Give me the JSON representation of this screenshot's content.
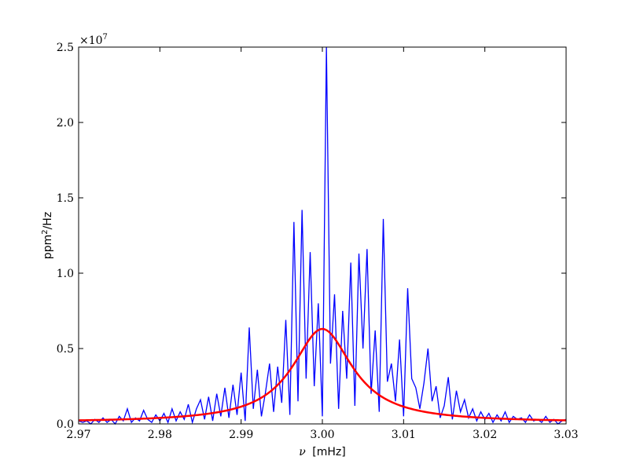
{
  "chart_data": {
    "type": "line",
    "xlabel_symbol": "ν",
    "xlabel_unit": "[mHz]",
    "ylabel_base": "ppm",
    "ylabel_exp": "2",
    "ylabel_unit": "/Hz",
    "offset_base": "×10",
    "offset_exp": "7",
    "xlim": [
      2.97,
      3.03
    ],
    "ylim": [
      0,
      2.5
    ],
    "x_ticks": [
      "2.97",
      "2.98",
      "2.99",
      "3.00",
      "3.01",
      "3.02",
      "3.03"
    ],
    "y_ticks": [
      "0.0",
      "0.5",
      "1.0",
      "1.5",
      "2.0",
      "2.5"
    ],
    "y_scale_note": "values in units of 1e7 ppm^2/Hz",
    "grid": false,
    "series": [
      {
        "color": "#0000ff",
        "style": "noisy-line",
        "x": [
          2.97,
          2.9705,
          2.971,
          2.9715,
          2.972,
          2.9725,
          2.973,
          2.9735,
          2.974,
          2.9745,
          2.975,
          2.9755,
          2.976,
          2.9765,
          2.977,
          2.9775,
          2.978,
          2.9785,
          2.979,
          2.9795,
          2.98,
          2.9805,
          2.981,
          2.9815,
          2.982,
          2.9825,
          2.983,
          2.9835,
          2.984,
          2.9845,
          2.985,
          2.9855,
          2.986,
          2.9865,
          2.987,
          2.9875,
          2.988,
          2.9885,
          2.989,
          2.9895,
          2.99,
          2.9905,
          2.991,
          2.9915,
          2.992,
          2.9925,
          2.993,
          2.9935,
          2.994,
          2.9945,
          2.995,
          2.9955,
          2.996,
          2.9965,
          2.997,
          2.9975,
          2.998,
          2.9985,
          2.999,
          2.9995,
          3.0,
          3.0005,
          3.001,
          3.0015,
          3.002,
          3.0025,
          3.003,
          3.0035,
          3.004,
          3.0045,
          3.005,
          3.0055,
          3.006,
          3.0065,
          3.007,
          3.0075,
          3.008,
          3.0085,
          3.009,
          3.0095,
          3.01,
          3.0105,
          3.011,
          3.0115,
          3.012,
          3.0125,
          3.013,
          3.0135,
          3.014,
          3.0145,
          3.015,
          3.0155,
          3.016,
          3.0165,
          3.017,
          3.0175,
          3.018,
          3.0185,
          3.019,
          3.0195,
          3.02,
          3.0205,
          3.021,
          3.0215,
          3.022,
          3.0225,
          3.023,
          3.0235,
          3.024,
          3.0245,
          3.025,
          3.0255,
          3.026,
          3.0265,
          3.027,
          3.0275,
          3.028,
          3.0285,
          3.029,
          3.0295,
          3.03
        ],
        "y": [
          0.02,
          0.01,
          0.02,
          0.0,
          0.03,
          0.01,
          0.04,
          0.01,
          0.03,
          0.0,
          0.05,
          0.02,
          0.1,
          0.01,
          0.04,
          0.02,
          0.09,
          0.03,
          0.01,
          0.06,
          0.02,
          0.07,
          0.01,
          0.1,
          0.02,
          0.08,
          0.03,
          0.13,
          0.01,
          0.1,
          0.16,
          0.03,
          0.18,
          0.02,
          0.2,
          0.05,
          0.24,
          0.04,
          0.26,
          0.06,
          0.34,
          0.02,
          0.64,
          0.1,
          0.36,
          0.05,
          0.21,
          0.4,
          0.08,
          0.38,
          0.14,
          0.69,
          0.06,
          1.34,
          0.15,
          1.42,
          0.3,
          1.14,
          0.25,
          0.8,
          0.05,
          2.5,
          0.4,
          0.86,
          0.1,
          0.75,
          0.3,
          1.07,
          0.12,
          1.13,
          0.5,
          1.16,
          0.2,
          0.62,
          0.08,
          1.36,
          0.28,
          0.4,
          0.15,
          0.56,
          0.05,
          0.9,
          0.3,
          0.24,
          0.1,
          0.27,
          0.5,
          0.15,
          0.25,
          0.04,
          0.12,
          0.31,
          0.03,
          0.22,
          0.08,
          0.16,
          0.04,
          0.1,
          0.02,
          0.08,
          0.03,
          0.07,
          0.01,
          0.06,
          0.02,
          0.08,
          0.01,
          0.05,
          0.03,
          0.04,
          0.01,
          0.06,
          0.02,
          0.03,
          0.01,
          0.05,
          0.01,
          0.03,
          0.0,
          0.02,
          0.03
        ]
      },
      {
        "color": "#ff0000",
        "style": "smooth-fit",
        "center": 3.0,
        "height": 0.63,
        "halfwidth": 0.0045,
        "baseline": 0.01
      }
    ]
  }
}
